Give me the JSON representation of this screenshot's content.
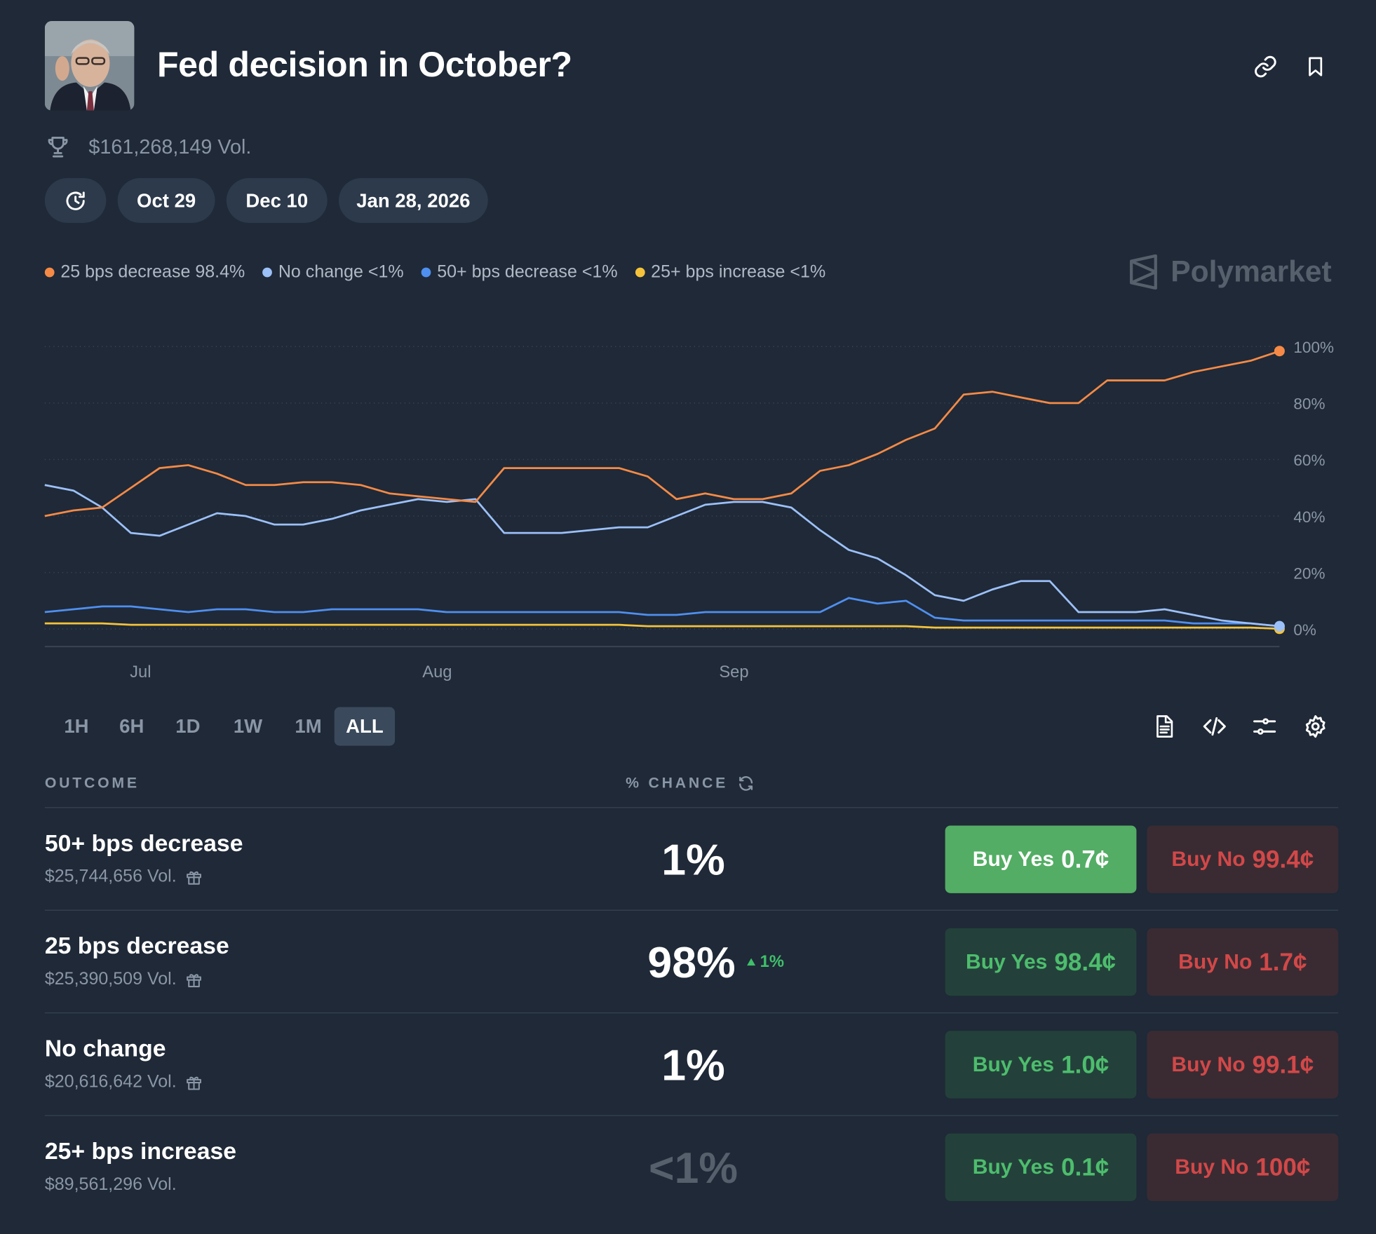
{
  "header": {
    "title": "Fed decision in October?",
    "volume": "$161,268,149 Vol."
  },
  "dates": {
    "items": [
      "Oct 29",
      "Dec 10",
      "Jan 28, 2026"
    ],
    "active_index": 0
  },
  "legend": [
    {
      "label": "25 bps decrease 98.4%",
      "color": "#f58a46"
    },
    {
      "label": "No change <1%",
      "color": "#9cc0f8"
    },
    {
      "label": "50+ bps decrease <1%",
      "color": "#4f8ff0"
    },
    {
      "label": "25+ bps increase <1%",
      "color": "#f5c33b"
    }
  ],
  "watermark": "Polymarket",
  "chart_data": {
    "type": "line",
    "title": "",
    "xlabel": "",
    "ylabel": "",
    "ylim": [
      0,
      100
    ],
    "y_ticks": [
      "0%",
      "20%",
      "40%",
      "60%",
      "80%",
      "100%"
    ],
    "x_ticks": [
      "Jul",
      "Aug",
      "Sep"
    ],
    "x_tick_day_index": [
      10,
      41,
      72
    ],
    "x": [
      0,
      3,
      6,
      9,
      12,
      15,
      18,
      21,
      24,
      27,
      30,
      33,
      36,
      39,
      42,
      45,
      48,
      51,
      54,
      57,
      60,
      63,
      66,
      69,
      72,
      75,
      78,
      81,
      84,
      87,
      90,
      93,
      96,
      99,
      102,
      105,
      108,
      111,
      114,
      117,
      120,
      123,
      126,
      129
    ],
    "series": [
      {
        "name": "25 bps decrease",
        "color": "#f58a46",
        "values": [
          40,
          42,
          43,
          50,
          57,
          58,
          55,
          51,
          51,
          52,
          52,
          51,
          48,
          47,
          46,
          45,
          57,
          57,
          57,
          57,
          57,
          54,
          46,
          48,
          46,
          46,
          48,
          56,
          58,
          62,
          67,
          71,
          83,
          84,
          82,
          80,
          80,
          88,
          88,
          88,
          91,
          93,
          95,
          98.4
        ]
      },
      {
        "name": "No change",
        "color": "#9cc0f8",
        "values": [
          51,
          49,
          43,
          34,
          33,
          37,
          41,
          40,
          37,
          37,
          39,
          42,
          44,
          46,
          45,
          46,
          34,
          34,
          34,
          35,
          36,
          36,
          40,
          44,
          45,
          45,
          43,
          35,
          28,
          25,
          19,
          12,
          10,
          14,
          17,
          17,
          6,
          6,
          6,
          7,
          5,
          3,
          2,
          1
        ]
      },
      {
        "name": "50+ bps decrease",
        "color": "#4f8ff0",
        "values": [
          6,
          7,
          8,
          8,
          7,
          6,
          7,
          7,
          6,
          6,
          7,
          7,
          7,
          7,
          6,
          6,
          6,
          6,
          6,
          6,
          6,
          5,
          5,
          6,
          6,
          6,
          6,
          6,
          11,
          9,
          10,
          4,
          3,
          3,
          3,
          3,
          3,
          3,
          3,
          3,
          2,
          2,
          2,
          1
        ]
      },
      {
        "name": "25+ bps increase",
        "color": "#f5c33b",
        "values": [
          2,
          2,
          2,
          1.5,
          1.5,
          1.5,
          1.5,
          1.5,
          1.5,
          1.5,
          1.5,
          1.5,
          1.5,
          1.5,
          1.5,
          1.5,
          1.5,
          1.5,
          1.5,
          1.5,
          1.5,
          1,
          1,
          1,
          1,
          1,
          1,
          1,
          1,
          1,
          1,
          0.5,
          0.5,
          0.5,
          0.5,
          0.5,
          0.5,
          0.5,
          0.5,
          0.5,
          0.5,
          0.5,
          0.5,
          0.1
        ]
      }
    ]
  },
  "timeframes": {
    "items": [
      "1H",
      "6H",
      "1D",
      "1W",
      "1M",
      "ALL"
    ],
    "active_index": 5
  },
  "table": {
    "col_outcome": "OUTCOME",
    "col_chance": "% CHANCE",
    "rows": [
      {
        "name": "50+ bps decrease",
        "volume": "$25,744,656 Vol.",
        "chance": "1%",
        "change": "",
        "yes_label": "Buy Yes",
        "yes_price": "0.7¢",
        "no_label": "Buy No",
        "no_price": "99.4¢"
      },
      {
        "name": "25 bps decrease",
        "volume": "$25,390,509 Vol.",
        "chance": "98%",
        "change": "1%",
        "yes_label": "Buy Yes",
        "yes_price": "98.4¢",
        "no_label": "Buy No",
        "no_price": "1.7¢"
      },
      {
        "name": "No change",
        "volume": "$20,616,642 Vol.",
        "chance": "1%",
        "change": "",
        "yes_label": "Buy Yes",
        "yes_price": "1.0¢",
        "no_label": "Buy No",
        "no_price": "99.1¢"
      },
      {
        "name": "25+ bps increase",
        "volume": "$89,561,296 Vol.",
        "chance": "<1%",
        "change": "",
        "yes_label": "Buy Yes",
        "yes_price": "0.1¢",
        "no_label": "Buy No",
        "no_price": "100¢"
      }
    ]
  }
}
